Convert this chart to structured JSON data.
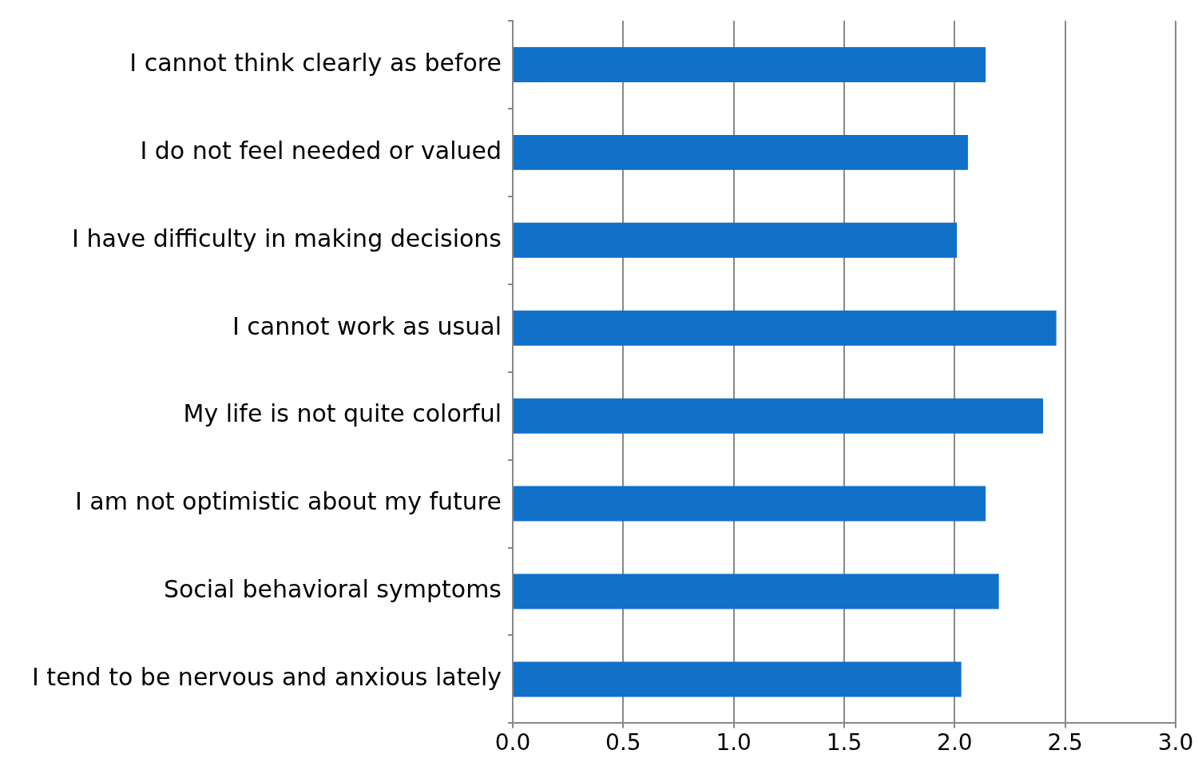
{
  "chart_data": {
    "type": "bar",
    "orientation": "horizontal",
    "categories": [
      "I cannot think clearly as before",
      "I do not feel needed or valued",
      "I have difficulty in making decisions",
      "I cannot work as usual",
      "My life is not quite colorful",
      "I am not optimistic about my future",
      "Social behavioral symptoms",
      "I tend to be nervous and anxious lately"
    ],
    "values": [
      2.14,
      2.06,
      2.01,
      2.46,
      2.4,
      2.14,
      2.2,
      2.03
    ],
    "color": "#1170c8",
    "xlim": [
      0,
      3
    ],
    "xticks": [
      {
        "value": 0,
        "label": "0.0"
      },
      {
        "value": 0.5,
        "label": "0.5"
      },
      {
        "value": 1,
        "label": "1.0"
      },
      {
        "value": 1.5,
        "label": "1.5"
      },
      {
        "value": 2,
        "label": "2.0"
      },
      {
        "value": 2.5,
        "label": "2.5"
      },
      {
        "value": 3,
        "label": "3.0"
      }
    ],
    "grid": "x",
    "legend": false
  }
}
